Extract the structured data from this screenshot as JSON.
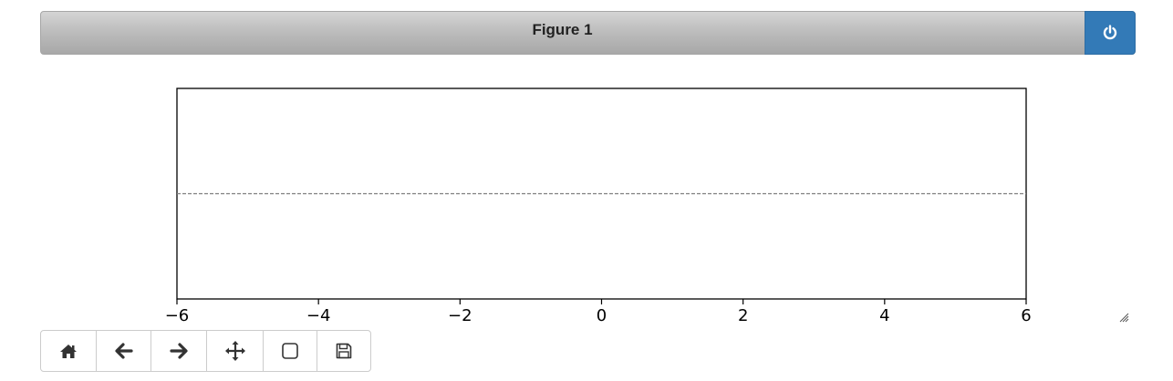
{
  "window": {
    "title": "Figure 1"
  },
  "header": {
    "close_icon": "power-icon",
    "close_color": "#337ab7"
  },
  "chart_data": {
    "type": "line",
    "title": "",
    "xlabel": "",
    "ylabel": "",
    "xlim": [
      -6,
      6
    ],
    "xticks": [
      -6,
      -4,
      -2,
      0,
      2,
      4,
      6
    ],
    "xtick_labels": [
      "−6",
      "−4",
      "−2",
      "0",
      "2",
      "4",
      "6"
    ],
    "yticks_visible": false,
    "grid": false,
    "series": [
      {
        "style": "dashed",
        "color": "#808080",
        "x": [
          -6,
          6
        ],
        "y": [
          0,
          0
        ]
      }
    ]
  },
  "toolbar": {
    "buttons": [
      {
        "icon": "home-icon"
      },
      {
        "icon": "back-arrow-icon"
      },
      {
        "icon": "forward-arrow-icon"
      },
      {
        "icon": "pan-icon"
      },
      {
        "icon": "zoom-rect-icon"
      },
      {
        "icon": "save-icon"
      }
    ]
  }
}
